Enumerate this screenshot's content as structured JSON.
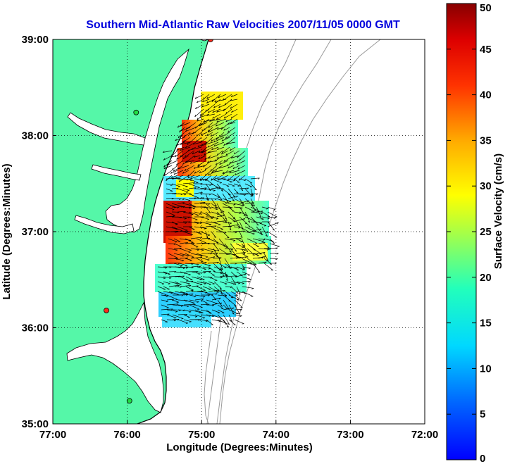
{
  "chart_data": {
    "type": "vector-field-map",
    "title": "Southern Mid-Atlantic Raw Velocities 2007/11/05 0000 GMT",
    "xlabel": "Longitude (Degrees:Minutes)",
    "ylabel": "Latitude (Degrees:Minutes)",
    "x_ticks": [
      "77:00",
      "76:00",
      "75:00",
      "74:00",
      "73:00",
      "72:00"
    ],
    "y_ticks": [
      "39:00",
      "38:00",
      "37:00",
      "36:00",
      "35:00"
    ],
    "x_range_deg_west": [
      77,
      72
    ],
    "y_range_deg_north": [
      35,
      39
    ],
    "grid": "dotted",
    "colorbar": {
      "label": "Surface Velocity (cm/s)",
      "min": 0,
      "max": 50,
      "ticks": [
        "0",
        "5",
        "10",
        "15",
        "20",
        "25",
        "30",
        "35",
        "40",
        "45",
        "50"
      ]
    },
    "colors": {
      "land": "#55f7a8",
      "water": "#ffffff",
      "coastline": "#000000",
      "bathymetry": "#9a9a9a",
      "title": "#0000dd",
      "site_red": "#ff2a1a",
      "site_green": "#22dd44"
    },
    "sites": [
      {
        "lon": 74.88,
        "lat": 39.0,
        "color": "red"
      },
      {
        "lon": 75.88,
        "lat": 38.24,
        "color": "green"
      },
      {
        "lon": 76.28,
        "lat": 36.18,
        "color": "red"
      },
      {
        "lon": 75.97,
        "lat": 35.24,
        "color": "green"
      }
    ]
  }
}
